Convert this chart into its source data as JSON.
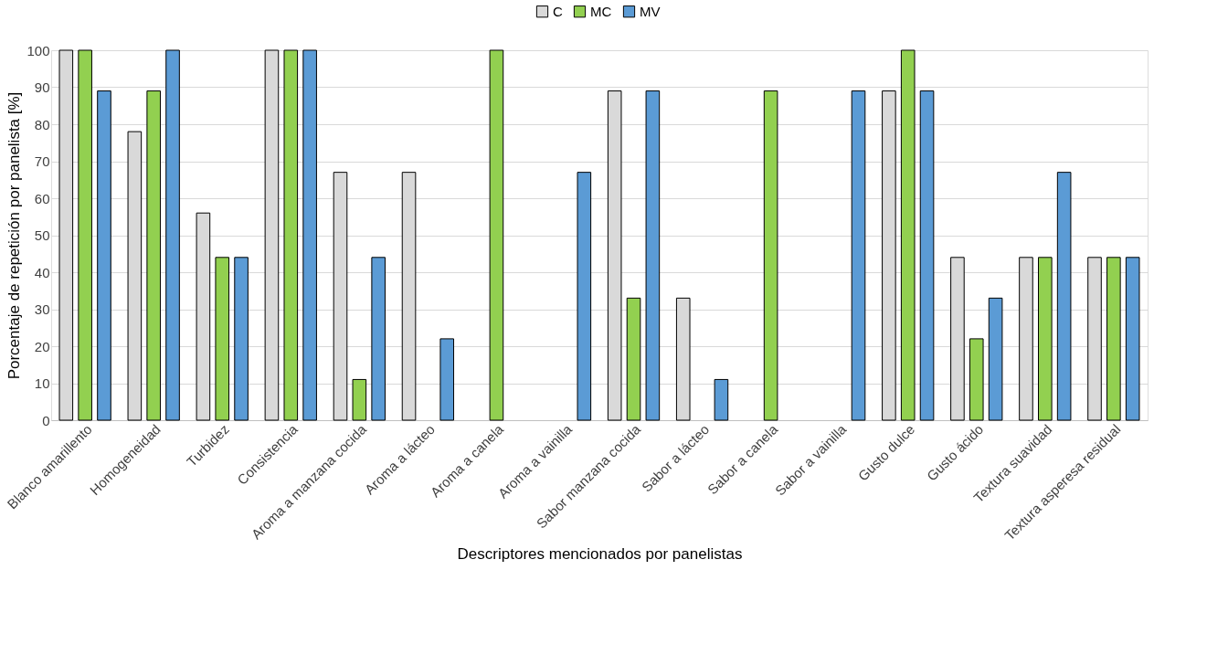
{
  "chart_data": {
    "type": "bar",
    "xlabel": "Descriptores mencionados por panelistas",
    "ylabel": "Porcentaje  de repetición por panelista [%]",
    "categories": [
      "Blanco amarillento",
      "Homogeneidad",
      "Turbidez",
      "Consistencia",
      "Aroma a manzana cocida",
      "Aroma a lácteo",
      "Aroma a canela",
      "Aroma a vainilla",
      "Sabor manzana cocida",
      "Sabor a lácteo",
      "Sabor a canela",
      "Sabor a vainilla",
      "Gusto dulce",
      "Gusto ácido",
      "Textura suavidad",
      "Textura asperesa residual"
    ],
    "series": [
      {
        "name": "C",
        "color": "#d9d9d9",
        "values": [
          100,
          78,
          56,
          100,
          67,
          67,
          0,
          0,
          89,
          33,
          0,
          0,
          89,
          44,
          44,
          44
        ]
      },
      {
        "name": "MC",
        "color": "#92d050",
        "values": [
          100,
          89,
          44,
          100,
          11,
          0,
          100,
          0,
          33,
          0,
          89,
          0,
          100,
          22,
          44,
          44
        ]
      },
      {
        "name": "MV",
        "color": "#5b9bd5",
        "values": [
          89,
          100,
          44,
          100,
          44,
          22,
          0,
          67,
          89,
          11,
          0,
          89,
          89,
          33,
          67,
          44
        ]
      }
    ],
    "ylim": [
      0,
      100
    ],
    "yticks": [
      0,
      10,
      20,
      30,
      40,
      50,
      60,
      70,
      80,
      90,
      100
    ],
    "grid": "y",
    "legend": "top"
  }
}
